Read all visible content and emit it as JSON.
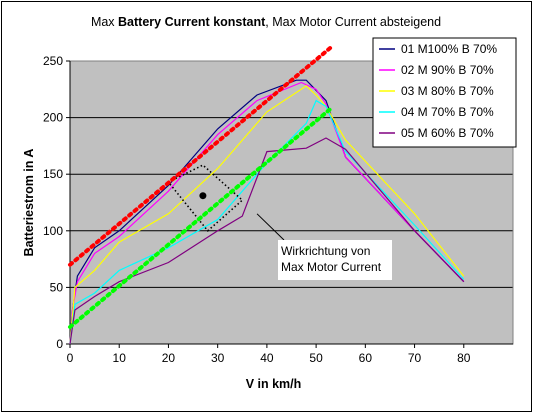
{
  "chart_data": {
    "type": "line",
    "title_parts": [
      {
        "text": "Max ",
        "bold": false
      },
      {
        "text": "Battery Current konstant",
        "bold": true
      },
      {
        "text": ", Max Motor Current absteigend",
        "bold": false
      }
    ],
    "xlabel": "V in km/h",
    "ylabel": "Batteriestrom in A",
    "xlim": [
      0,
      90
    ],
    "ylim": [
      0,
      250
    ],
    "xticks": [
      0,
      10,
      20,
      30,
      40,
      50,
      60,
      70,
      80
    ],
    "yticks": [
      0,
      50,
      100,
      150,
      200,
      250
    ],
    "grid": true,
    "legend_position": "top-right",
    "plot_background": "#c0c0c0",
    "series": [
      {
        "name": "01 M100% B 70%",
        "color": "#000080",
        "x": [
          0,
          0.5,
          1.5,
          5,
          10,
          20,
          30,
          38,
          46,
          48,
          52,
          56,
          70,
          80
        ],
        "y": [
          0,
          30,
          60,
          85,
          100,
          140,
          190,
          220,
          233,
          233,
          215,
          165,
          100,
          55
        ]
      },
      {
        "name": "02 M 90% B 70%",
        "color": "#ff00ff",
        "x": [
          0,
          0.5,
          1.5,
          5,
          10,
          20,
          30,
          38,
          47,
          50,
          52,
          56,
          70,
          80
        ],
        "y": [
          0,
          30,
          55,
          80,
          95,
          135,
          185,
          215,
          231,
          225,
          212,
          165,
          100,
          55
        ]
      },
      {
        "name": "03 M 80% B 70%",
        "color": "#ffff00",
        "x": [
          0,
          1,
          5,
          10,
          20,
          30,
          40,
          48,
          50,
          52,
          56,
          70,
          80
        ],
        "y": [
          0,
          50,
          65,
          90,
          115,
          155,
          205,
          228,
          220,
          210,
          180,
          115,
          60
        ]
      },
      {
        "name": "04 M 70% B 70%",
        "color": "#00ffff",
        "x": [
          0,
          1,
          5,
          10,
          20,
          30,
          40,
          48,
          50,
          52,
          56,
          70,
          80
        ],
        "y": [
          0,
          35,
          45,
          65,
          85,
          110,
          160,
          195,
          215,
          210,
          170,
          105,
          57
        ]
      },
      {
        "name": "05 M 60% B 70%",
        "color": "#800080",
        "x": [
          0,
          1,
          5,
          10,
          20,
          30,
          35,
          40,
          48,
          52,
          56,
          70,
          80
        ],
        "y": [
          0,
          30,
          42,
          55,
          72,
          100,
          113,
          170,
          173,
          182,
          172,
          100,
          55
        ]
      }
    ],
    "trend_lines": [
      {
        "color": "#ff0000",
        "x": [
          0,
          53
        ],
        "y": [
          70,
          262
        ]
      },
      {
        "color": "#00ff00",
        "x": [
          0,
          53
        ],
        "y": [
          15,
          208
        ]
      }
    ],
    "marker_point": {
      "x": 27,
      "y": 131
    },
    "dotted_shape": {
      "x": [
        20,
        27,
        35,
        28,
        20
      ],
      "y": [
        143,
        158,
        127,
        100,
        143
      ]
    },
    "annotation": {
      "lines": [
        "Wirkrichtung von",
        "Max Motor Current"
      ],
      "points_to": {
        "x": 38,
        "y": 115
      }
    }
  }
}
